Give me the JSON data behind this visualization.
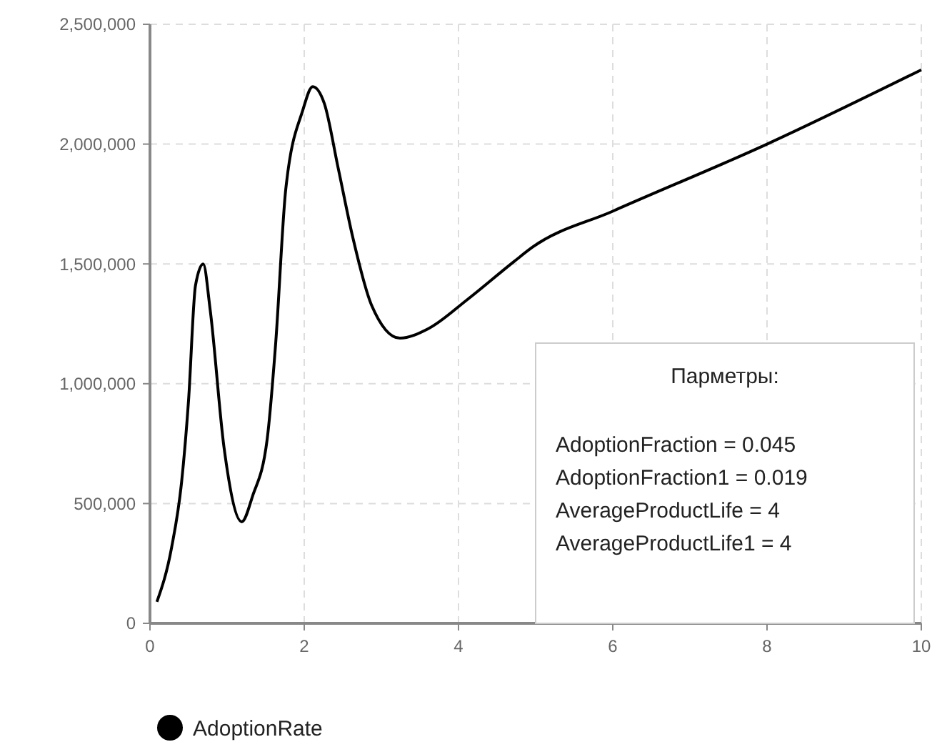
{
  "chart_data": {
    "type": "line",
    "xlim": [
      0,
      10
    ],
    "xticks": [
      0,
      2,
      4,
      6,
      8,
      10
    ],
    "ylim": [
      0,
      2500000
    ],
    "yticks": [
      {
        "value": 0,
        "label": "0"
      },
      {
        "value": 500000,
        "label": "500,000"
      },
      {
        "value": 1000000,
        "label": "1,000,000"
      },
      {
        "value": 1500000,
        "label": "1,500,000"
      },
      {
        "value": 2000000,
        "label": "2,000,000"
      },
      {
        "value": 2500000,
        "label": "2,500,000"
      }
    ],
    "grid": true,
    "legend": "bottom left",
    "marker": "none",
    "line_style": "solid",
    "x": [
      0.09,
      0.28,
      0.41,
      0.5,
      0.59,
      0.69,
      0.78,
      0.96,
      1.19,
      1.33,
      1.52,
      1.63,
      1.76,
      1.98,
      2.11,
      2.26,
      2.44,
      2.63,
      2.87,
      3.24,
      3.61,
      4.11,
      4.72,
      4.96,
      6,
      8,
      10
    ],
    "series": [
      {
        "name": "AdoptionRate",
        "color": "#000000",
        "values": [
          90000,
          316000,
          590000,
          930000,
          1410000,
          1500000,
          1310000,
          734000,
          424000,
          531000,
          770000,
          1170000,
          1810000,
          2140000,
          2240000,
          2170000,
          1900000,
          1610000,
          1330000,
          1190000,
          1230000,
          1350000,
          1510000,
          1570000,
          1720000,
          2000000,
          2310000
        ]
      }
    ],
    "annotations": [
      "Парметры:",
      "AdoptionFraction = 0.045",
      "AdoptionFraction1 = 0.019",
      "AverageProductLife = 4",
      "AverageProductLife1 = 4"
    ]
  }
}
